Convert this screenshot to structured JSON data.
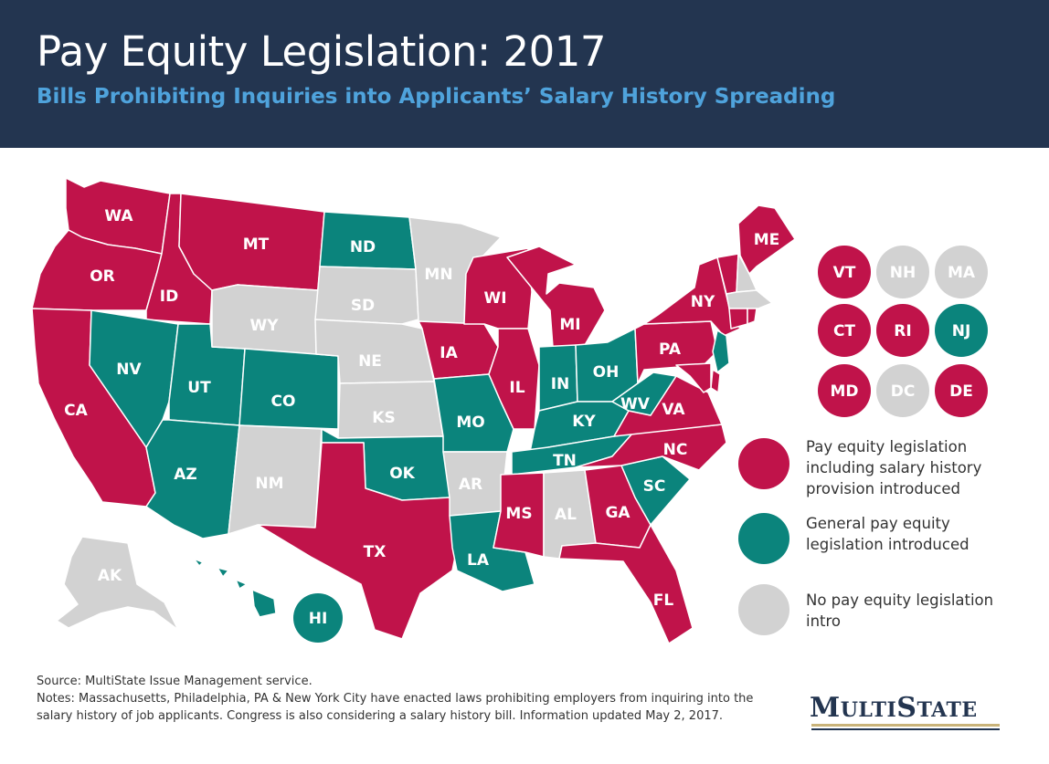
{
  "header": {
    "title": "Pay Equity Legislation: 2017",
    "subtitle": "Bills Prohibiting Inquiries into Applicants’ Salary History Spreading"
  },
  "colors": {
    "red": "#c0134a",
    "teal": "#0b847c",
    "gray": "#d2d2d2",
    "header_bg": "#233550",
    "subtitle": "#4fa3dc"
  },
  "states": {
    "WA": "red",
    "OR": "red",
    "CA": "red",
    "ID": "red",
    "MT": "red",
    "NV": "teal",
    "UT": "teal",
    "AZ": "teal",
    "WY": "gray",
    "CO": "teal",
    "NM": "gray",
    "ND": "teal",
    "SD": "gray",
    "NE": "gray",
    "KS": "gray",
    "OK": "teal",
    "TX": "red",
    "MN": "gray",
    "IA": "red",
    "MO": "teal",
    "AR": "gray",
    "LA": "teal",
    "WI": "red",
    "IL": "red",
    "MI": "red",
    "IN": "teal",
    "OH": "teal",
    "KY": "teal",
    "TN": "teal",
    "MS": "red",
    "AL": "gray",
    "GA": "red",
    "FL": "red",
    "SC": "teal",
    "NC": "red",
    "VA": "red",
    "WV": "teal",
    "PA": "red",
    "NY": "red",
    "ME": "red",
    "AK": "gray",
    "HI": "teal",
    "VT": "red",
    "NH": "gray",
    "MA": "gray",
    "CT": "red",
    "RI": "red",
    "NJ": "teal",
    "MD": "red",
    "DC": "gray",
    "DE": "red"
  },
  "small_states": [
    {
      "abbr": "VT",
      "status": "red"
    },
    {
      "abbr": "NH",
      "status": "gray"
    },
    {
      "abbr": "MA",
      "status": "gray"
    },
    {
      "abbr": "CT",
      "status": "red"
    },
    {
      "abbr": "RI",
      "status": "red"
    },
    {
      "abbr": "NJ",
      "status": "teal"
    },
    {
      "abbr": "MD",
      "status": "red"
    },
    {
      "abbr": "DC",
      "status": "gray"
    },
    {
      "abbr": "DE",
      "status": "red"
    }
  ],
  "legend": [
    {
      "status": "red",
      "label": "Pay equity legislation including  salary history provision introduced"
    },
    {
      "status": "teal",
      "label": "General pay equity legislation introduced"
    },
    {
      "status": "gray",
      "label": "No pay equity legislation intro"
    }
  ],
  "footer": {
    "source": "Source: MultiState Issue Management  service.",
    "notes": "Notes: Massachusetts, Philadelphia, PA & New York City have enacted laws prohibiting employers from inquiring into the salary history of job applicants. Congress is also considering a salary history bill. Information updated May 2, 2017."
  },
  "logo": {
    "text": "MultiState"
  }
}
